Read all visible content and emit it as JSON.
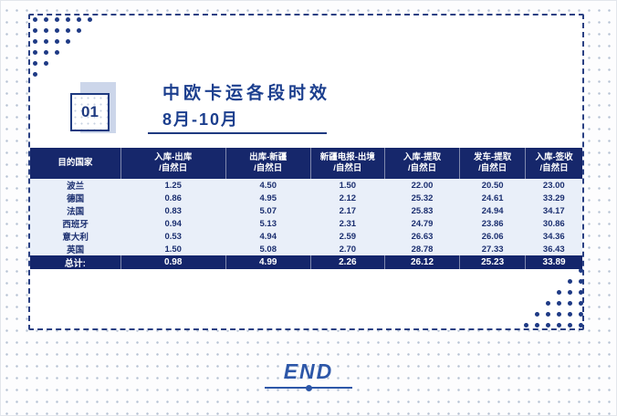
{
  "slide": {
    "section_number": "01",
    "title": "中欧卡运各段时效",
    "subtitle": "8月-10月",
    "end_label": "END"
  },
  "table": {
    "headers": [
      {
        "line1": "目的国家",
        "line2": ""
      },
      {
        "line1": "入库-出库",
        "line2": "/自然日"
      },
      {
        "line1": "出库-新疆",
        "line2": "/自然日"
      },
      {
        "line1": "新疆电报-出境",
        "line2": "/自然日"
      },
      {
        "line1": "入库-提取",
        "line2": "/自然日"
      },
      {
        "line1": "发车-提取",
        "line2": "/自然日"
      },
      {
        "line1": "入库-签收",
        "line2": "/自然日"
      }
    ],
    "rows": [
      {
        "country": "波兰",
        "values": [
          "1.25",
          "4.50",
          "1.50",
          "22.00",
          "20.50",
          "23.00"
        ]
      },
      {
        "country": "德国",
        "values": [
          "0.86",
          "4.95",
          "2.12",
          "25.32",
          "24.61",
          "33.29"
        ]
      },
      {
        "country": "法国",
        "values": [
          "0.83",
          "5.07",
          "2.17",
          "25.83",
          "24.94",
          "34.17"
        ]
      },
      {
        "country": "西班牙",
        "values": [
          "0.94",
          "5.13",
          "2.31",
          "24.79",
          "23.86",
          "30.86"
        ]
      },
      {
        "country": "意大利",
        "values": [
          "0.53",
          "4.94",
          "2.59",
          "26.63",
          "26.06",
          "34.36"
        ]
      },
      {
        "country": "英国",
        "values": [
          "1.50",
          "5.08",
          "2.70",
          "28.78",
          "27.33",
          "36.43"
        ]
      }
    ],
    "total": {
      "label": "总计:",
      "values": [
        "0.98",
        "4.99",
        "2.26",
        "26.12",
        "25.23",
        "33.89"
      ]
    }
  },
  "colors": {
    "navy_header": "#16276b",
    "title_blue": "#1c3f8e",
    "row_light_blue": "#e9eff9",
    "end_blue": "#2d57a8",
    "dot_navy": "#1e3a85"
  }
}
